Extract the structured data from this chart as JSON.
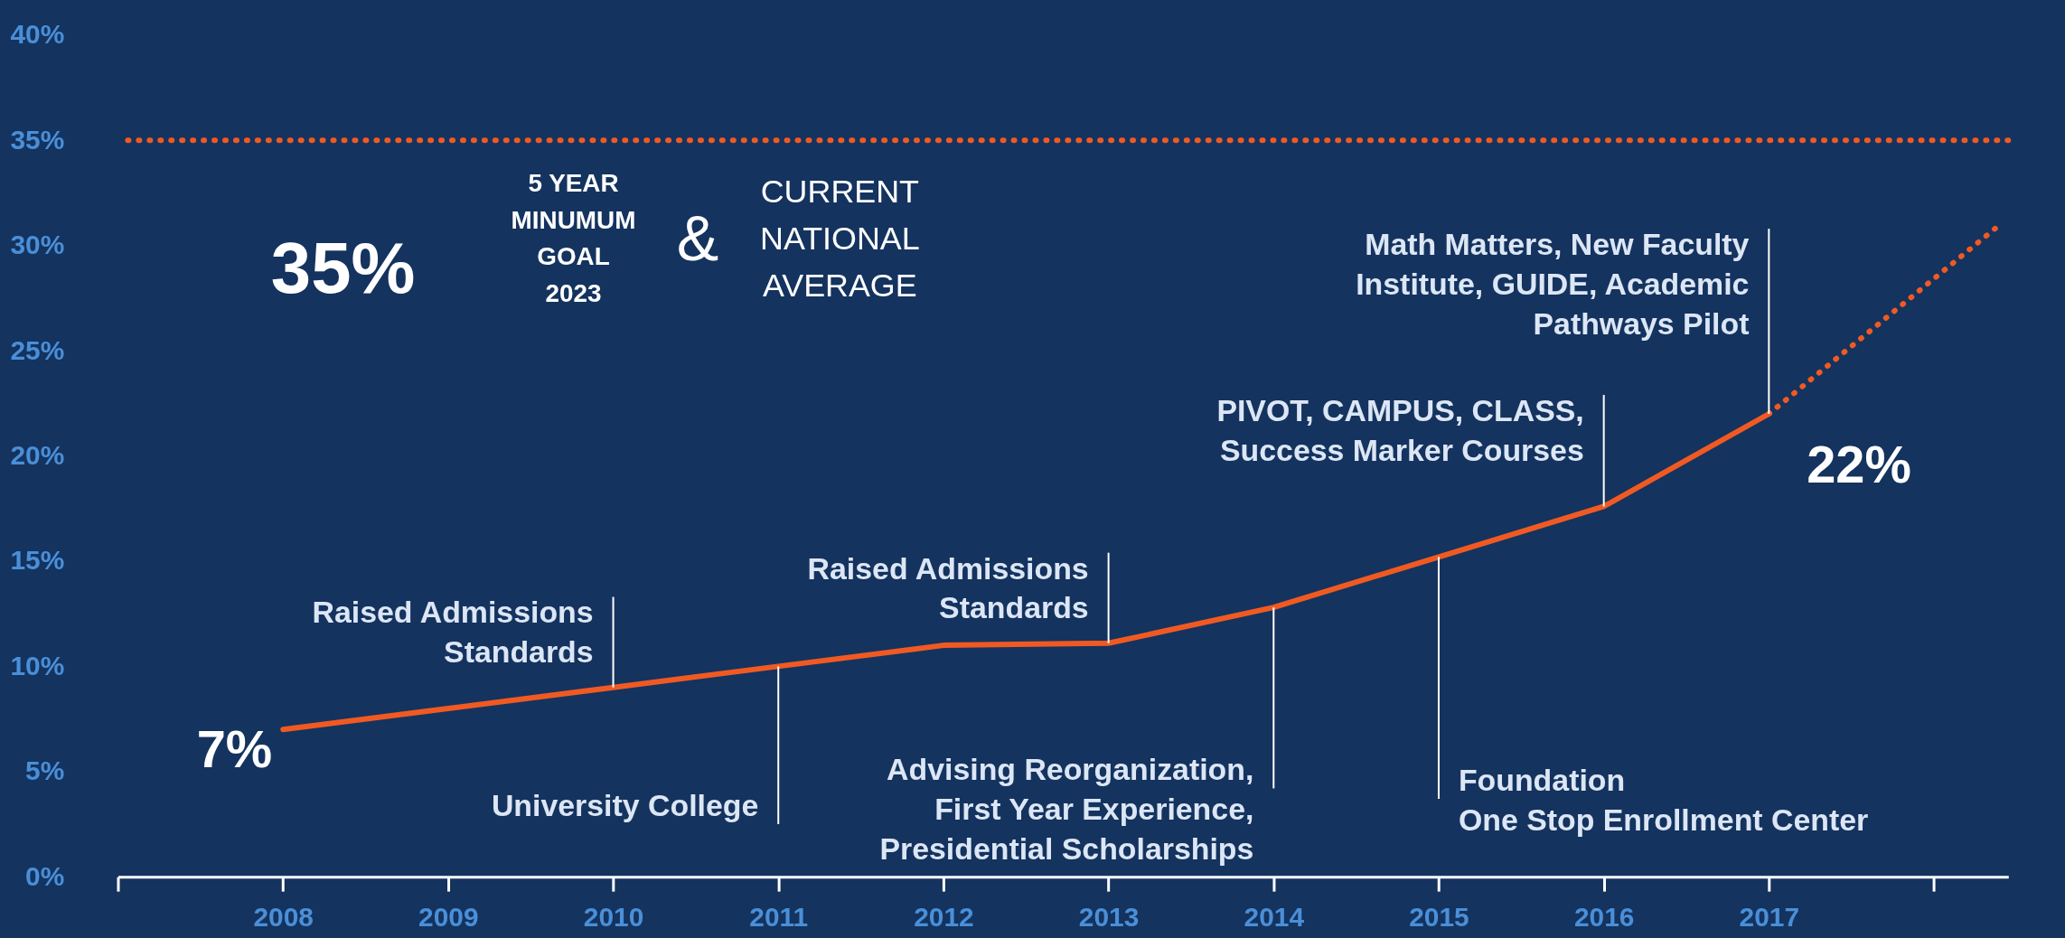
{
  "chart_data": {
    "type": "line",
    "x": [
      2008,
      2009,
      2010,
      2011,
      2012,
      2013,
      2014,
      2015,
      2016,
      2017
    ],
    "series": [
      {
        "color": "#f05a22",
        "line_style": "solid",
        "values": [
          7,
          8,
          9,
          10,
          11,
          11.1,
          12.8,
          15.2,
          17.6,
          22
        ],
        "value_labels": [
          "7%",
          null,
          null,
          null,
          null,
          null,
          null,
          null,
          null,
          "22%"
        ]
      },
      {
        "type": "line",
        "line_style": "dotted",
        "color": "#f05a22",
        "x": [
          2017,
          2018.4
        ],
        "values": [
          22,
          31
        ]
      }
    ],
    "xlim": [
      2007,
      2018.45
    ],
    "xticks": [
      {
        "value": 2007,
        "label": null
      },
      2008,
      2009,
      2010,
      2011,
      2012,
      2013,
      2014,
      2015,
      2016,
      2017,
      {
        "value": 2018,
        "label": null
      }
    ],
    "ylim": [
      0,
      40
    ],
    "yticks": [
      {
        "value": 0,
        "label": "0%"
      },
      {
        "value": 5,
        "label": "5%"
      },
      {
        "value": 10,
        "label": "10%"
      },
      {
        "value": 15,
        "label": "15%"
      },
      {
        "value": 20,
        "label": "20%"
      },
      {
        "value": 25,
        "label": "25%"
      },
      {
        "value": 30,
        "label": "30%"
      },
      {
        "value": 35,
        "label": "35%"
      },
      {
        "value": 40,
        "label": "40%"
      }
    ],
    "grid": false,
    "marker": "none",
    "ref_lines": [
      {
        "axis": "y",
        "value": 35,
        "label": "35%",
        "color": "#f05a22",
        "line_style": "dotted"
      }
    ],
    "annotations": [
      {
        "text": "Raised Admissions\nStandards",
        "x": 2010,
        "y": 9
      },
      {
        "text": "University College",
        "x": 2011,
        "y": 10
      },
      {
        "text": "Raised Admissions\nStandards",
        "x": 2013,
        "y": 11.1
      },
      {
        "text": "Advising Reorganization,\nFirst Year Experience,\nPresidential Scholarships",
        "x": 2014,
        "y": 12.8
      },
      {
        "text": "Foundation\nOne Stop Enrollment Center",
        "x": 2015,
        "y": 15.2
      },
      {
        "text": "PIVOT, CAMPUS, CLASS,\nSuccess Marker Courses",
        "x": 2016,
        "y": 17.6
      },
      {
        "text": "Math Matters, New Faculty\nInstitute, GUIDE, Academic\nPathways Pilot",
        "x": 2017,
        "y": 22
      },
      "5 YEAR\nMINUMUM\nGOAL\n2023",
      "&",
      "CURRENT\nNATIONAL\nAVERAGE"
    ]
  }
}
